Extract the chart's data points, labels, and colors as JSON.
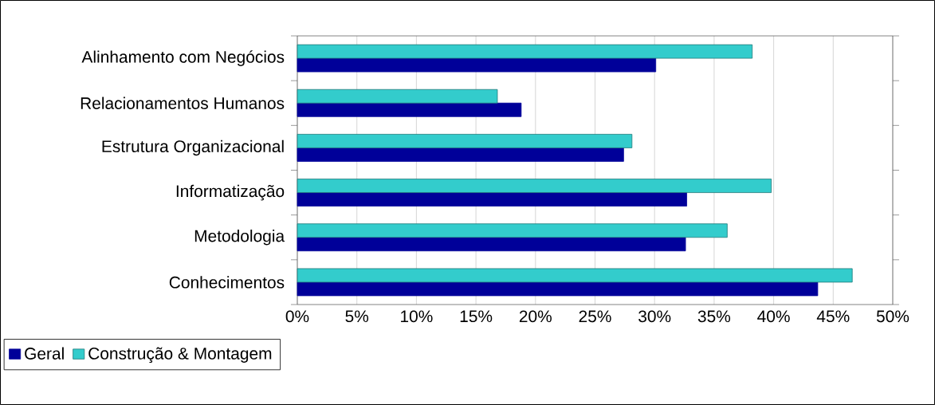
{
  "chart_data": {
    "type": "bar",
    "orientation": "horizontal",
    "categories": [
      "Alinhamento com Negócios",
      "Relacionamentos Humanos",
      "Estrutura Organizacional",
      "Informatização",
      "Metodologia",
      "Conhecimentos"
    ],
    "series": [
      {
        "name": "Geral",
        "color": "#000099",
        "values": [
          30.1,
          18.8,
          27.4,
          32.7,
          32.6,
          43.7
        ]
      },
      {
        "name": "Construção & Montagem",
        "color": "#33cccc",
        "values": [
          38.2,
          16.8,
          28.1,
          39.8,
          36.1,
          46.6
        ]
      }
    ],
    "xlim": [
      0,
      50
    ],
    "xticks": [
      {
        "value": 0,
        "label": "0%"
      },
      {
        "value": 5,
        "label": "5%"
      },
      {
        "value": 10,
        "label": "10%"
      },
      {
        "value": 15,
        "label": "15%"
      },
      {
        "value": 20,
        "label": "20%"
      },
      {
        "value": 25,
        "label": "25%"
      },
      {
        "value": 30,
        "label": "30%"
      },
      {
        "value": 35,
        "label": "35%"
      },
      {
        "value": 40,
        "label": "40%"
      },
      {
        "value": 45,
        "label": "45%"
      },
      {
        "value": 50,
        "label": "50%"
      }
    ],
    "grid": "x",
    "legend": "bottom left"
  }
}
